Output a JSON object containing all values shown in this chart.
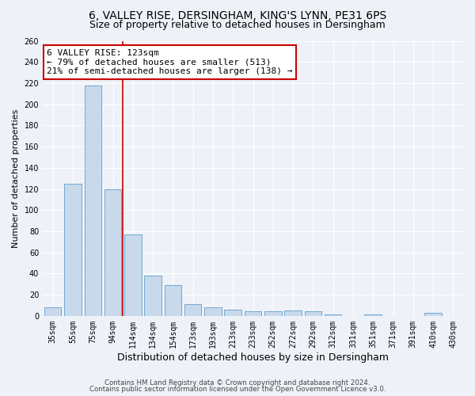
{
  "title_line1": "6, VALLEY RISE, DERSINGHAM, KING'S LYNN, PE31 6PS",
  "title_line2": "Size of property relative to detached houses in Dersingham",
  "xlabel": "Distribution of detached houses by size in Dersingham",
  "ylabel": "Number of detached properties",
  "categories": [
    "35sqm",
    "55sqm",
    "75sqm",
    "94sqm",
    "114sqm",
    "134sqm",
    "154sqm",
    "173sqm",
    "193sqm",
    "213sqm",
    "233sqm",
    "252sqm",
    "272sqm",
    "292sqm",
    "312sqm",
    "331sqm",
    "351sqm",
    "371sqm",
    "391sqm",
    "410sqm",
    "430sqm"
  ],
  "values": [
    8,
    125,
    218,
    120,
    77,
    38,
    29,
    11,
    8,
    6,
    4,
    4,
    5,
    4,
    1,
    0,
    1,
    0,
    0,
    3,
    0
  ],
  "bar_color": "#c9d9ec",
  "bar_edge_color": "#6fa8d0",
  "ref_line_index": 3.5,
  "ref_line_color": "#cc0000",
  "annotation_text": "6 VALLEY RISE: 123sqm\n← 79% of detached houses are smaller (513)\n21% of semi-detached houses are larger (138) →",
  "annotation_box_color": "white",
  "annotation_box_edge_color": "#cc0000",
  "ylim": [
    0,
    260
  ],
  "yticks": [
    0,
    20,
    40,
    60,
    80,
    100,
    120,
    140,
    160,
    180,
    200,
    220,
    240,
    260
  ],
  "footer_line1": "Contains HM Land Registry data © Crown copyright and database right 2024.",
  "footer_line2": "Contains public sector information licensed under the Open Government Licence v3.0.",
  "background_color": "#eef2f8",
  "plot_bg_color": "#eef2f8",
  "grid_color": "#ffffff",
  "title_fontsize": 10,
  "subtitle_fontsize": 9,
  "axis_label_fontsize": 8,
  "tick_fontsize": 7,
  "bar_width": 0.85
}
